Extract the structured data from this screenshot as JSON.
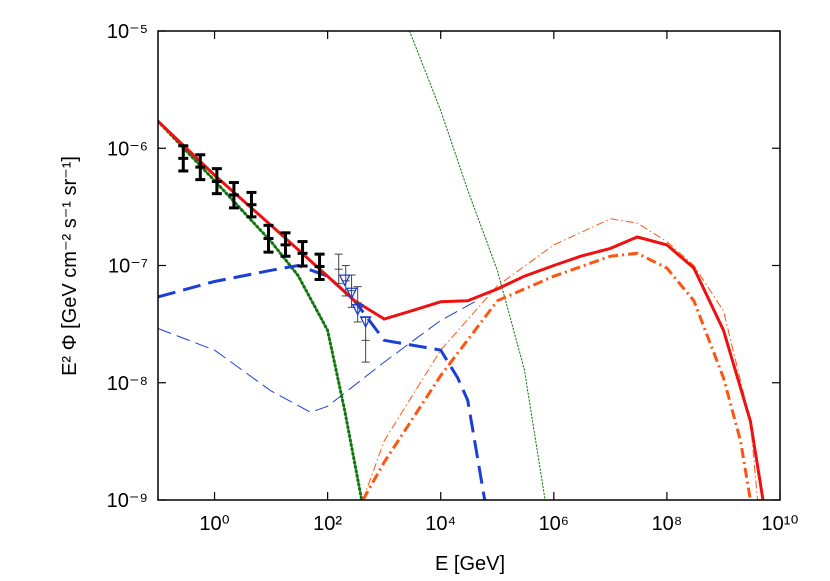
{
  "chart_data": {
    "type": "line",
    "xlabel": "E [GeV]",
    "ylabel": "E² Φ [GeV cm⁻² s⁻¹ sr⁻¹]",
    "xscale": "log",
    "yscale": "log",
    "xlim": [
      0.1,
      10000000000.0
    ],
    "ylim": [
      1e-09,
      1e-05
    ],
    "xticks": [
      {
        "value": 1,
        "label": "10⁰"
      },
      {
        "value": 100,
        "label": "10²"
      },
      {
        "value": 10000,
        "label": "10⁴"
      },
      {
        "value": 1000000,
        "label": "10⁶"
      },
      {
        "value": 100000000,
        "label": "10⁸"
      },
      {
        "value": 10000000000,
        "label": "10¹⁰"
      }
    ],
    "yticks": [
      {
        "value": 1e-09,
        "label": "10⁻⁹"
      },
      {
        "value": 1e-08,
        "label": "10⁻⁸"
      },
      {
        "value": 1e-07,
        "label": "10⁻⁷"
      },
      {
        "value": 1e-06,
        "label": "10⁻⁶"
      },
      {
        "value": 1e-05,
        "label": "10⁻⁵"
      }
    ],
    "series": [
      {
        "color": "#1a3fd9",
        "style": "dashed",
        "weight": "thin",
        "x": [
          0.1,
          1,
          10,
          50,
          100,
          1000,
          10000,
          50000
        ],
        "values": [
          2.9e-08,
          1.9e-08,
          8.5e-09,
          5.6e-09,
          6.3e-09,
          1.5e-08,
          3.4e-08,
          5.2e-08
        ]
      },
      {
        "color": "#117711",
        "style": "dotted",
        "weight": "thin",
        "x": [
          2800,
          10000,
          30000,
          100000,
          300000,
          700000
        ],
        "values": [
          1e-05,
          2.1e-06,
          4.4e-07,
          9.1e-08,
          1.3e-08,
          1e-09
        ]
      },
      {
        "color": "#ff5511",
        "style": "dashdot",
        "weight": "thin",
        "x": [
          420,
          1000,
          10000,
          100000,
          1000000,
          10000000,
          30000000,
          100000000,
          300000000,
          1000000000,
          3000000000,
          4000000000
        ],
        "values": [
          1e-09,
          3.2e-09,
          1.9e-08,
          6.7e-08,
          1.5e-07,
          2.5e-07,
          2.3e-07,
          1.6e-07,
          1e-07,
          4.1e-08,
          4.7e-09,
          1e-09
        ]
      },
      {
        "color": "#117711",
        "style": "dotted",
        "weight": "thick",
        "x": [
          0.1,
          1,
          10,
          30,
          100,
          200,
          400
        ],
        "values": [
          1.7e-06,
          5.3e-07,
          1.6e-07,
          8.2e-08,
          2.8e-08,
          5.8e-09,
          1e-09
        ]
      },
      {
        "color": "#1a3fd9",
        "style": "dashed",
        "weight": "thick",
        "x": [
          0.1,
          1,
          10,
          30,
          100,
          300,
          1000,
          3000,
          10000,
          20000,
          30000,
          60000
        ],
        "values": [
          5.4e-08,
          7.3e-08,
          9.1e-08,
          1e-07,
          8.1e-08,
          5e-08,
          2.3e-08,
          2.1e-08,
          1.9e-08,
          1.1e-08,
          7.1e-09,
          1e-09
        ]
      },
      {
        "color": "#ff5511",
        "style": "dashdot",
        "weight": "thick",
        "x": [
          420,
          1000,
          10000,
          100000,
          1000000,
          10000000,
          30000000,
          100000000,
          300000000,
          1000000000,
          2000000000,
          3000000000
        ],
        "values": [
          1e-09,
          2.1e-09,
          1.15e-08,
          5e-08,
          8.1e-08,
          1.2e-07,
          1.27e-07,
          9.5e-08,
          5e-08,
          1.1e-08,
          3.2e-09,
          1e-09
        ]
      },
      {
        "color": "#ee1111",
        "style": "solid",
        "weight": "thick",
        "x": [
          0.1,
          1,
          10,
          100,
          300,
          1000,
          3000,
          10000,
          30000,
          100000,
          300000,
          1000000,
          3000000,
          10000000,
          30000000,
          100000000,
          300000000,
          1000000000,
          3000000000,
          5000000000
        ],
        "values": [
          1.7e-06,
          5.9e-07,
          2.2e-07,
          8.1e-08,
          5e-08,
          3.5e-08,
          4.1e-08,
          4.9e-08,
          5e-08,
          6.3e-08,
          8.1e-08,
          1e-07,
          1.2e-07,
          1.4e-07,
          1.75e-07,
          1.5e-07,
          9.5e-08,
          2.8e-08,
          4.7e-09,
          1e-09
        ]
      }
    ],
    "points": [
      {
        "color": "#444444",
        "weight": "thin",
        "x": [
          157,
          209,
          265,
          340,
          470
        ],
        "values": [
          9.3e-08,
          7.4e-08,
          6.1e-08,
          4.8e-08,
          2.3e-08
        ],
        "lower": [
          7e-08,
          5.5e-08,
          4.4e-08,
          3.3e-08,
          1.5e-08
        ],
        "upper": [
          1.25e-07,
          1e-07,
          8.3e-08,
          6.6e-08,
          3.6e-08
        ]
      },
      {
        "color": "#000000",
        "weight": "thick",
        "x": [
          0.28,
          0.56,
          1.1,
          2.2,
          4.5,
          9,
          18,
          36,
          72
        ],
        "values": [
          8.2e-07,
          6.9e-07,
          5.2e-07,
          4e-07,
          3.3e-07,
          1.7e-07,
          1.5e-07,
          1.27e-07,
          9.8e-08
        ],
        "lower": [
          6.4e-07,
          5.4e-07,
          4.1e-07,
          3.1e-07,
          2.6e-07,
          1.3e-07,
          1.2e-07,
          9.9e-08,
          7.6e-08
        ],
        "upper": [
          1.05e-06,
          8.8e-07,
          6.7e-07,
          5.1e-07,
          4.2e-07,
          2.2e-07,
          1.9e-07,
          1.6e-07,
          1.25e-07
        ]
      }
    ],
    "limits": {
      "color": "#1a3fd9",
      "x": [
        200,
        265,
        340,
        470
      ],
      "values": [
        7.5e-08,
        5.8e-08,
        4.2e-08,
        3.3e-08
      ]
    }
  }
}
